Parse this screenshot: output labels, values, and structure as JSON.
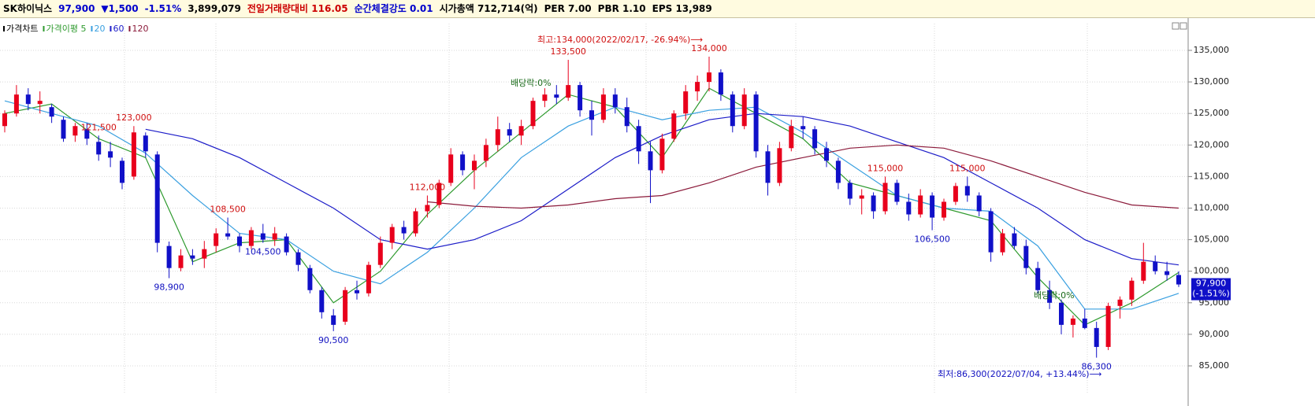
{
  "header": {
    "items": [
      {
        "text": "SK하이닉스",
        "color": "#000000"
      },
      {
        "text": "97,900",
        "color": "#0000cc"
      },
      {
        "text": "▼1,500",
        "color": "#0000cc"
      },
      {
        "text": "-1.51%",
        "color": "#0000cc"
      },
      {
        "text": "3,899,079",
        "color": "#000000"
      },
      {
        "text": "전일거래량대비 116.05",
        "color": "#cc0000"
      },
      {
        "text": "순간체결강도 0.01",
        "color": "#0000cc"
      },
      {
        "text": "시가총액 712,714(억)",
        "color": "#000000"
      },
      {
        "text": "PER 7.00",
        "color": "#000000"
      },
      {
        "text": "PBR 1.10",
        "color": "#000000"
      },
      {
        "text": "EPS 13,989",
        "color": "#000000"
      }
    ]
  },
  "chart_data": {
    "type": "candlestick",
    "name": "가격차트",
    "up_color": "#e8001c",
    "down_color": "#1010c8",
    "ylim": [
      82630,
      139240
    ],
    "yticks": [
      {
        "value": 85000,
        "label": "85,000"
      },
      {
        "value": 90000,
        "label": "90,000"
      },
      {
        "value": 95000,
        "label": "95,000"
      },
      {
        "value": 100000,
        "label": "100,000"
      },
      {
        "value": 105000,
        "label": "105,000"
      },
      {
        "value": 110000,
        "label": "110,000"
      },
      {
        "value": 115000,
        "label": "115,000"
      },
      {
        "value": 120000,
        "label": "120,000"
      },
      {
        "value": 125000,
        "label": "125,000"
      },
      {
        "value": 130000,
        "label": "130,000"
      },
      {
        "value": 135000,
        "label": "135,000"
      }
    ],
    "grid": true,
    "candles": [
      [
        123000,
        125500,
        122000,
        125000
      ],
      [
        125000,
        129500,
        124500,
        128000
      ],
      [
        128000,
        129000,
        125500,
        126500
      ],
      [
        126500,
        128500,
        125000,
        127000
      ],
      [
        126000,
        126500,
        123500,
        124500
      ],
      [
        124000,
        124500,
        120500,
        121000
      ],
      [
        121500,
        123500,
        120500,
        123000
      ],
      [
        122500,
        123500,
        120000,
        121000
      ],
      [
        120500,
        121500,
        117500,
        118500
      ],
      [
        119000,
        120500,
        116500,
        118000
      ],
      [
        117500,
        118000,
        113000,
        114000
      ],
      [
        115000,
        123000,
        114500,
        122000
      ],
      [
        121500,
        122000,
        118000,
        119000
      ],
      [
        118500,
        119000,
        103000,
        104500
      ],
      [
        104000,
        104700,
        98900,
        100500
      ],
      [
        100500,
        103500,
        100000,
        102500
      ],
      [
        102500,
        103500,
        101000,
        102000
      ],
      [
        102000,
        104800,
        100500,
        103500
      ],
      [
        104000,
        106800,
        103000,
        106000
      ],
      [
        106000,
        108500,
        105000,
        105500
      ],
      [
        105500,
        106000,
        103000,
        104000
      ],
      [
        104000,
        107000,
        103500,
        106500
      ],
      [
        106000,
        107500,
        104500,
        105000
      ],
      [
        105000,
        107000,
        104000,
        106000
      ],
      [
        105500,
        106000,
        102500,
        103000
      ],
      [
        103000,
        103500,
        100000,
        101000
      ],
      [
        100500,
        101000,
        96500,
        97000
      ],
      [
        97000,
        97500,
        92500,
        93500
      ],
      [
        93000,
        94000,
        90500,
        91500
      ],
      [
        92000,
        97500,
        91500,
        97000
      ],
      [
        97000,
        98500,
        95500,
        96500
      ],
      [
        96500,
        101500,
        96000,
        101000
      ],
      [
        101000,
        105500,
        100500,
        104500
      ],
      [
        104500,
        107500,
        103500,
        107000
      ],
      [
        107000,
        108000,
        105000,
        106000
      ],
      [
        106000,
        110000,
        105500,
        109500
      ],
      [
        109500,
        112000,
        108500,
        110500
      ],
      [
        110500,
        114500,
        110000,
        114000
      ],
      [
        114000,
        119500,
        113500,
        118500
      ],
      [
        118500,
        119000,
        115200,
        116000
      ],
      [
        116000,
        118500,
        113000,
        117500
      ],
      [
        117500,
        121000,
        116500,
        120000
      ],
      [
        120000,
        124500,
        119000,
        122500
      ],
      [
        122500,
        123500,
        120500,
        121500
      ],
      [
        121500,
        124000,
        120000,
        123000
      ],
      [
        123000,
        127500,
        122500,
        127000
      ],
      [
        127000,
        129000,
        126000,
        128000
      ],
      [
        128000,
        129500,
        126500,
        127500
      ],
      [
        127500,
        133500,
        127000,
        129500
      ],
      [
        129500,
        130000,
        124500,
        125500
      ],
      [
        125500,
        127000,
        121500,
        124000
      ],
      [
        124000,
        129000,
        123500,
        128000
      ],
      [
        128000,
        129000,
        125000,
        126000
      ],
      [
        126000,
        127500,
        122000,
        123000
      ],
      [
        123000,
        124000,
        117000,
        119000
      ],
      [
        119000,
        120500,
        110800,
        116000
      ],
      [
        116000,
        121800,
        115500,
        121000
      ],
      [
        121000,
        125500,
        120500,
        125000
      ],
      [
        125000,
        129500,
        124000,
        128500
      ],
      [
        128500,
        131000,
        127000,
        130000
      ],
      [
        130000,
        134000,
        128500,
        131500
      ],
      [
        131500,
        132000,
        127000,
        128000
      ],
      [
        128000,
        128500,
        122000,
        123000
      ],
      [
        123000,
        129000,
        122500,
        128000
      ],
      [
        128000,
        128500,
        118000,
        119000
      ],
      [
        119000,
        120000,
        112000,
        114000
      ],
      [
        114000,
        120500,
        113500,
        119500
      ],
      [
        119500,
        124000,
        119000,
        123000
      ],
      [
        123000,
        124500,
        121000,
        122500
      ],
      [
        122500,
        123000,
        118500,
        119500
      ],
      [
        119500,
        120500,
        116500,
        117500
      ],
      [
        117500,
        118000,
        113000,
        114000
      ],
      [
        114000,
        114500,
        110500,
        111500
      ],
      [
        111500,
        113000,
        109000,
        112000
      ],
      [
        112000,
        112500,
        108300,
        109500
      ],
      [
        109500,
        115000,
        109000,
        114000
      ],
      [
        114000,
        114500,
        110500,
        111000
      ],
      [
        111000,
        112300,
        108000,
        109000
      ],
      [
        109000,
        113000,
        108500,
        112000
      ],
      [
        112000,
        112500,
        106500,
        108500
      ],
      [
        108500,
        111500,
        108000,
        111000
      ],
      [
        111000,
        114000,
        110500,
        113500
      ],
      [
        113500,
        115000,
        111000,
        112000
      ],
      [
        112000,
        112500,
        108700,
        109500
      ],
      [
        109500,
        110000,
        101500,
        103000
      ],
      [
        103000,
        106700,
        102500,
        106000
      ],
      [
        106000,
        107000,
        103500,
        104000
      ],
      [
        104000,
        105000,
        99500,
        100500
      ],
      [
        100500,
        101500,
        96500,
        97000
      ],
      [
        97000,
        98500,
        94000,
        95000
      ],
      [
        95000,
        95500,
        90000,
        91500
      ],
      [
        91500,
        93000,
        89500,
        92500
      ],
      [
        92500,
        94000,
        90800,
        91000
      ],
      [
        91000,
        92000,
        86300,
        88000
      ],
      [
        88000,
        95000,
        87500,
        94500
      ],
      [
        94500,
        96000,
        92500,
        95500
      ],
      [
        95500,
        99000,
        94500,
        98500
      ],
      [
        98500,
        104500,
        98000,
        101500
      ],
      [
        101500,
        102500,
        99500,
        100000
      ],
      [
        100000,
        101500,
        98500,
        99400
      ],
      [
        99400,
        100000,
        97500,
        97900
      ]
    ],
    "series": [
      {
        "name": "가격이평 5",
        "color": "#2e9a2e",
        "values": [
          125000,
          126500,
          121000,
          118000,
          101500,
          104500,
          105000,
          95000,
          100000,
          109000,
          116000,
          122000,
          128000,
          126000,
          118000,
          129000,
          125000,
          121000,
          114000,
          112000,
          110000,
          108000,
          99000,
          91500,
          95000,
          99800
        ]
      },
      {
        "name": "20",
        "color": "#3aa0e0",
        "values": [
          127000,
          125000,
          123000,
          118700,
          112000,
          106000,
          105000,
          100000,
          98000,
          103000,
          110000,
          118000,
          123000,
          126000,
          124000,
          125500,
          126000,
          122000,
          117000,
          112000,
          110000,
          109500,
          104000,
          94000,
          94000,
          96500
        ]
      },
      {
        "name": "60",
        "color": "#1c1cc8",
        "values": [
          null,
          null,
          null,
          122500,
          121000,
          118000,
          114000,
          110000,
          105000,
          103500,
          105000,
          108000,
          113000,
          118000,
          121500,
          124000,
          125000,
          124500,
          123000,
          120500,
          118000,
          114000,
          110000,
          105000,
          102000,
          101000
        ]
      },
      {
        "name": "120",
        "color": "#8b1a3a",
        "values": [
          null,
          null,
          null,
          null,
          null,
          null,
          null,
          null,
          null,
          111000,
          110300,
          110000,
          110500,
          111500,
          112000,
          114000,
          116500,
          118000,
          119500,
          120000,
          119500,
          117500,
          115000,
          112500,
          110500,
          110000
        ]
      }
    ],
    "annotations": [
      {
        "label": "123,000",
        "value": 123000
      },
      {
        "label": "98,900",
        "value": 98900
      },
      {
        "label": "108,500",
        "value": 108500
      },
      {
        "label": "90,500",
        "value": 90500
      },
      {
        "label": "133,500",
        "value": 133500
      },
      {
        "label": "121,500",
        "value": 121500
      },
      {
        "label": "134,000",
        "value": 134000
      },
      {
        "label": "112,000",
        "value": 112000
      },
      {
        "label": "115,000",
        "value": 115000
      },
      {
        "label": "106,500",
        "value": 106500
      },
      {
        "label": "115,000",
        "value": 115000
      },
      {
        "label": "86,300",
        "value": 86300
      },
      {
        "label": "104,500",
        "value": 104500
      }
    ],
    "record_high_note": "최고:134,000(2022/02/17, -26.94%)⟶",
    "record_low_note": "최저:86,300(2022/07/04, +13.44%)⟶",
    "dividend_notes": [
      "배당락:0%",
      "배당락:0%"
    ],
    "last_price": {
      "value": 97900,
      "labels": [
        "97,900",
        "(-1.51%)"
      ]
    }
  }
}
